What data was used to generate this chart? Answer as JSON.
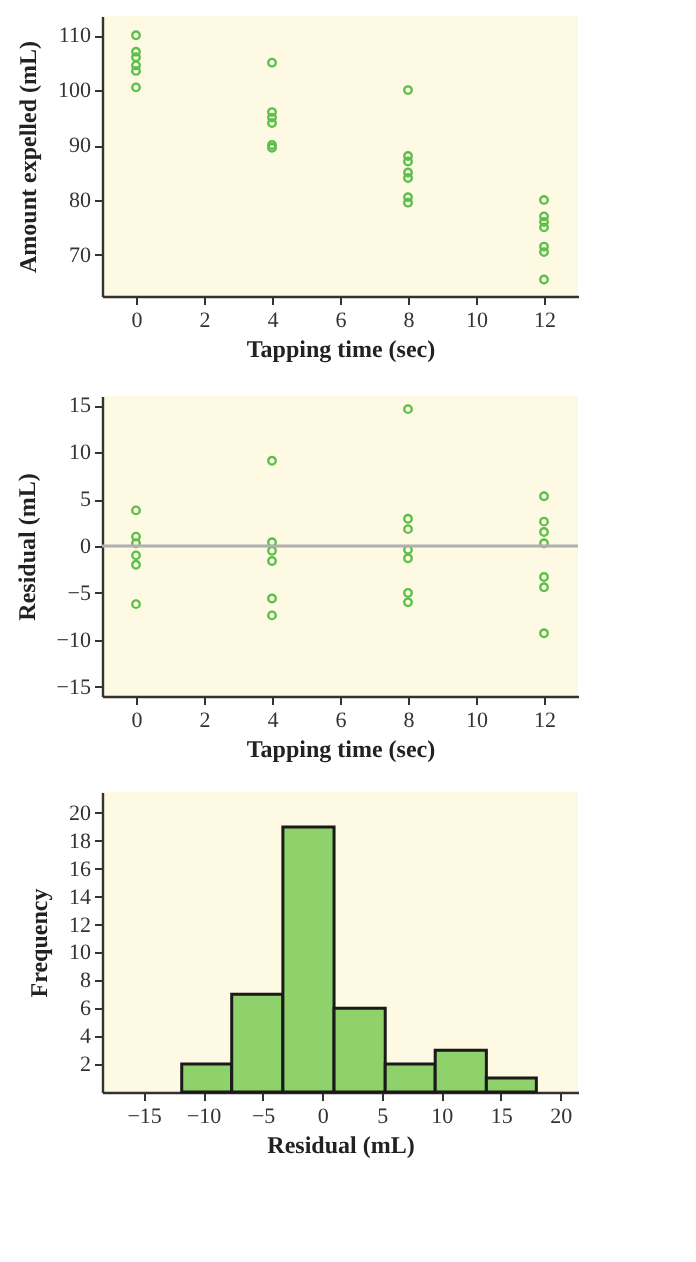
{
  "chart_data": [
    {
      "type": "scatter",
      "xlabel": "Tapping time (sec)",
      "ylabel": "Amount expelled (mL)",
      "xlim": [
        -1,
        13
      ],
      "ylim": [
        62.5,
        113.5
      ],
      "xticks": [
        0,
        2,
        4,
        6,
        8,
        10,
        12
      ],
      "yticks": [
        70,
        80,
        90,
        100,
        110
      ],
      "grid": false,
      "marker": "circle",
      "series": [
        {
          "color": "#5cbf4a",
          "x": [
            0,
            0,
            0,
            0,
            0,
            0,
            4,
            4,
            4,
            4,
            4,
            4,
            8,
            8,
            8,
            8,
            8,
            8,
            8,
            12,
            12,
            12,
            12,
            12,
            12,
            12
          ],
          "values": [
            110,
            107,
            106,
            104.5,
            103.5,
            100.5,
            105,
            96,
            95,
            94,
            90,
            89.5,
            100,
            88,
            87,
            85,
            84,
            80.5,
            79.5,
            80,
            77,
            76,
            75,
            71.5,
            70.5,
            65.5
          ]
        }
      ]
    },
    {
      "type": "scatter",
      "xlabel": "Tapping time (sec)",
      "ylabel": "Residual (mL)",
      "xlim": [
        -1,
        13
      ],
      "ylim": [
        -16,
        16
      ],
      "xticks": [
        0,
        2,
        4,
        6,
        8,
        10,
        12
      ],
      "yticks": [
        -15,
        -10,
        -5,
        0,
        5,
        10,
        15
      ],
      "grid": false,
      "marker": "circle",
      "ref_lines": [
        {
          "axis": "y",
          "value": 0,
          "color": "#b0b0b0"
        }
      ],
      "series": [
        {
          "color": "#5cbf4a",
          "x": [
            0,
            0,
            0,
            0,
            0,
            0,
            4,
            4,
            4,
            4,
            4,
            4,
            8,
            8,
            8,
            8,
            8,
            8,
            8,
            12,
            12,
            12,
            12,
            12,
            12,
            12
          ],
          "values": [
            3.8,
            1,
            0.3,
            -1,
            -2,
            -6.2,
            9.1,
            0.4,
            -0.5,
            -1.6,
            -5.6,
            -7.4,
            14.6,
            2.9,
            1.8,
            -0.4,
            -1.3,
            -5,
            -6,
            5.3,
            2.6,
            1.5,
            0.3,
            -3.3,
            -4.4,
            -9.3
          ]
        }
      ]
    },
    {
      "type": "histogram",
      "xlabel": "Residual (mL)",
      "ylabel": "Frequency",
      "xlim": [
        -18.5,
        21.5
      ],
      "ylim": [
        0,
        21.5
      ],
      "xticks": [
        -15,
        -10,
        -5,
        0,
        5,
        10,
        15,
        20
      ],
      "yticks": [
        2,
        4,
        6,
        8,
        10,
        12,
        14,
        16,
        18,
        20
      ],
      "grid": false,
      "bins": [
        -11.8,
        -7.6,
        -3.3,
        1,
        5.3,
        9.5,
        13.8,
        18
      ],
      "series": [
        {
          "color": "#8fd16a",
          "values": [
            2,
            7,
            19,
            6,
            2,
            3,
            1
          ]
        }
      ]
    }
  ]
}
